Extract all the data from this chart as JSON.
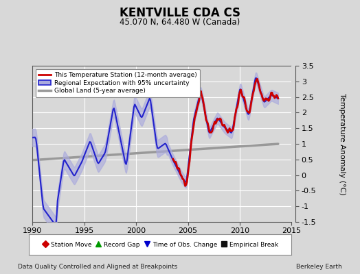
{
  "title": "KENTVILLE CDA CS",
  "subtitle": "45.070 N, 64.480 W (Canada)",
  "ylabel": "Temperature Anomaly (°C)",
  "xlabel_left": "Data Quality Controlled and Aligned at Breakpoints",
  "xlabel_right": "Berkeley Earth",
  "ylim": [
    -1.5,
    3.5
  ],
  "xlim": [
    1990,
    2015
  ],
  "yticks": [
    -1.5,
    -1.0,
    -0.5,
    0.0,
    0.5,
    1.0,
    1.5,
    2.0,
    2.5,
    3.0,
    3.5
  ],
  "xticks": [
    1990,
    1995,
    2000,
    2005,
    2010,
    2015
  ],
  "bg_color": "#d8d8d8",
  "plot_bg_color": "#d8d8d8",
  "grid_color": "#ffffff",
  "red_line_color": "#cc0000",
  "blue_line_color": "#2222cc",
  "blue_fill_color": "#aaaadd",
  "gray_line_color": "#999999",
  "legend1_labels": [
    "This Temperature Station (12-month average)",
    "Regional Expectation with 95% uncertainty",
    "Global Land (5-year average)"
  ],
  "legend2_labels": [
    "Station Move",
    "Record Gap",
    "Time of Obs. Change",
    "Empirical Break"
  ],
  "legend2_colors": [
    "#cc0000",
    "#009900",
    "#0000cc",
    "#111111"
  ],
  "legend2_markers": [
    "D",
    "^",
    "v",
    "s"
  ]
}
